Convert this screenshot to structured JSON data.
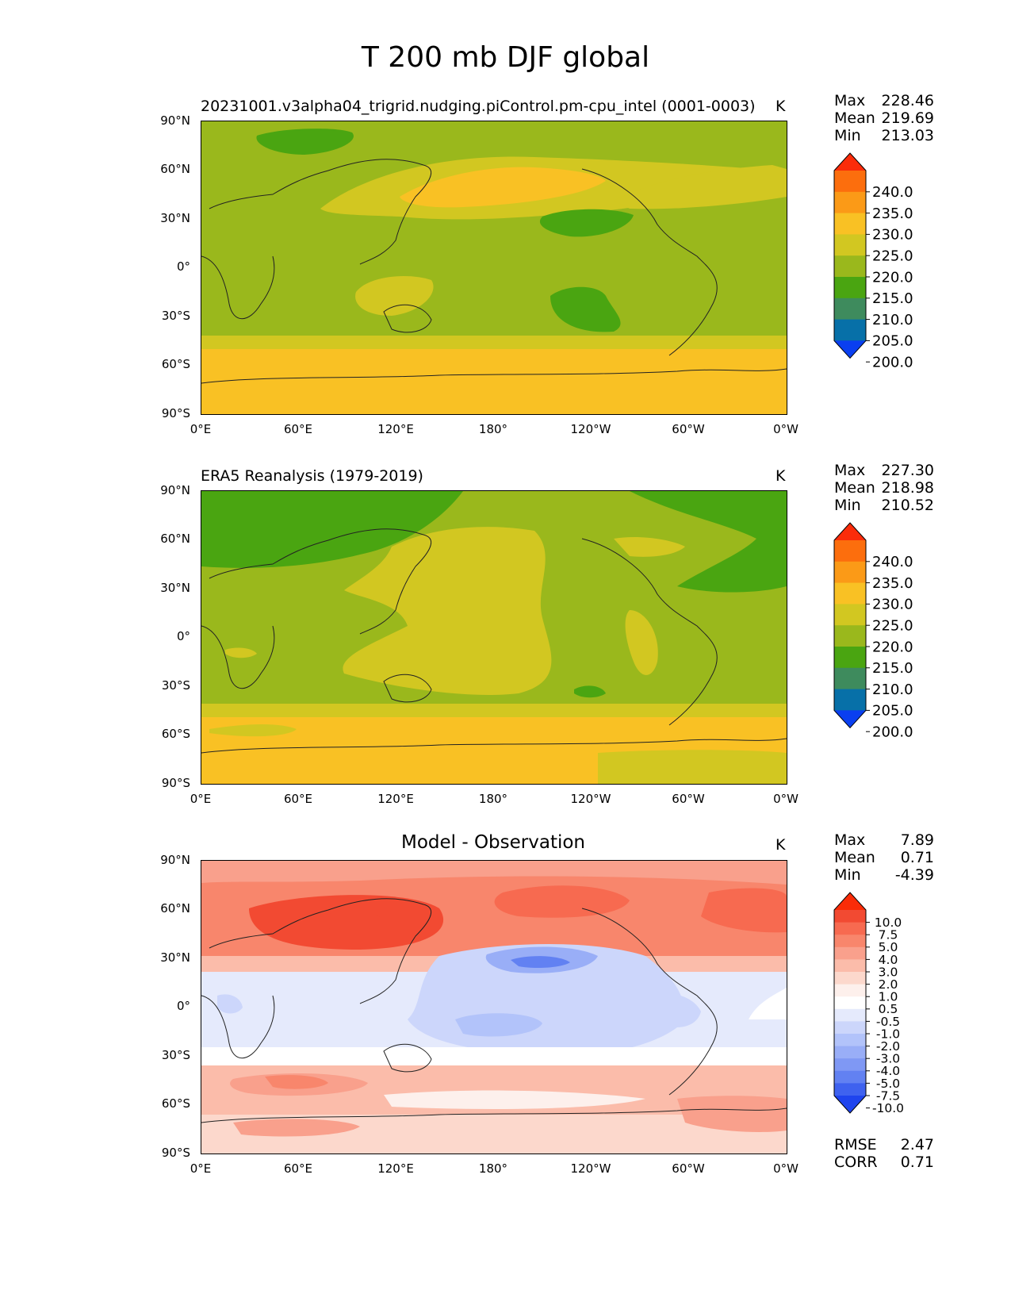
{
  "title": "T 200 mb DJF global",
  "panels": [
    {
      "id": "model",
      "title": "20231001.v3alpha04_trigrid.nudging.piControl.pm-cpu_intel (0001-0003)",
      "unit": "K",
      "stats": [
        {
          "label": "Max",
          "value": "228.46"
        },
        {
          "label": "Mean",
          "value": "219.69"
        },
        {
          "label": "Min",
          "value": "213.03"
        }
      ]
    },
    {
      "id": "obs",
      "title": "ERA5 Reanalysis (1979-2019)",
      "unit": "K",
      "stats": [
        {
          "label": "Max",
          "value": "227.30"
        },
        {
          "label": "Mean",
          "value": "218.98"
        },
        {
          "label": "Min",
          "value": "210.52"
        }
      ]
    },
    {
      "id": "diff",
      "title": "Model - Observation",
      "unit": "K",
      "stats": [
        {
          "label": "Max",
          "value": "7.89"
        },
        {
          "label": "Mean",
          "value": "0.71"
        },
        {
          "label": "Min",
          "value": "-4.39"
        }
      ],
      "extra_stats": [
        {
          "label": "RMSE",
          "value": "2.47"
        },
        {
          "label": "CORR",
          "value": "0.71"
        }
      ]
    }
  ],
  "y_ticks": [
    "90°N",
    "60°N",
    "30°N",
    "0°",
    "30°S",
    "60°S",
    "90°S"
  ],
  "x_ticks": [
    "0°E",
    "60°E",
    "120°E",
    "180°",
    "120°W",
    "60°W",
    "0°W"
  ],
  "colorbar_temp": {
    "labels": [
      "240.0",
      "235.0",
      "230.0",
      "225.0",
      "220.0",
      "215.0",
      "210.0",
      "205.0",
      "200.0"
    ],
    "colors": [
      "#fb2c0a",
      "#fc6e0d",
      "#fb9a17",
      "#f9c124",
      "#d2c721",
      "#9ab81c",
      "#4aa511",
      "#3e8b5d",
      "#0770a8",
      "#0a3ff0"
    ]
  },
  "colorbar_diff": {
    "labels": [
      "10.0",
      "7.5",
      "5.0",
      "4.0",
      "3.0",
      "2.0",
      "1.0",
      "0.5",
      "-0.5",
      "-1.0",
      "-2.0",
      "-3.0",
      "-4.0",
      "-5.0",
      "-7.5",
      "-10.0"
    ],
    "colors": [
      "#fa2c08",
      "#f24a32",
      "#f76a50",
      "#f8866c",
      "#f9a08c",
      "#fbbcaa",
      "#fcd8cc",
      "#fdf0ec",
      "#ffffff",
      "#e5eafc",
      "#ccd6fb",
      "#b2c3fa",
      "#99aef7",
      "#7f98f4",
      "#6281f2",
      "#3f62ef",
      "#1f44ee"
    ]
  }
}
